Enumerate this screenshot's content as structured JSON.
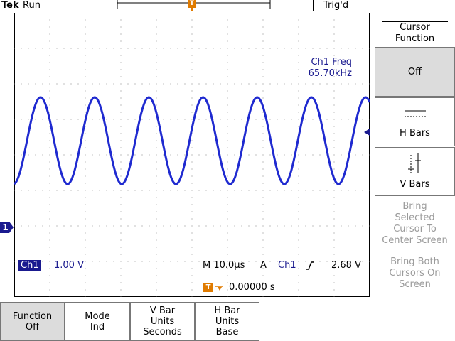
{
  "header": {
    "brand": "Tek",
    "run_state": "Run",
    "trigger_state": "Trig'd"
  },
  "screen": {
    "measurement_label": "Ch1 Freq",
    "measurement_value": "65.70kHz",
    "ch1_marker": "1",
    "trigger_marker": "T"
  },
  "status": {
    "channel": "Ch1",
    "volts_per_div": "1.00 V",
    "timebase": "M 10.0µs",
    "trigger_mode": "A",
    "trigger_source": "Ch1",
    "trigger_level": "2.68 V",
    "trigger_position": "0.00000 s"
  },
  "side_menu": {
    "title_line1": "Cursor",
    "title_line2": "Function",
    "off_label": "Off",
    "hbars_label": "H Bars",
    "vbars_label": "V Bars",
    "info1": [
      "Bring",
      "Selected",
      "Cursor To",
      "Center Screen"
    ],
    "info2": [
      "Bring Both",
      "Cursors On",
      "Screen"
    ]
  },
  "bottom_menu": {
    "function": [
      "Function",
      "Off"
    ],
    "mode": [
      "Mode",
      "Ind"
    ],
    "vbar_units": [
      "V Bar",
      "Units",
      "Seconds"
    ],
    "hbar_units": [
      "H Bar",
      "Units",
      "Base"
    ]
  },
  "colors": {
    "trace": "#1f2ad0",
    "accent_orange": "#e07b00",
    "channel_blue": "#1a1a8f"
  }
}
